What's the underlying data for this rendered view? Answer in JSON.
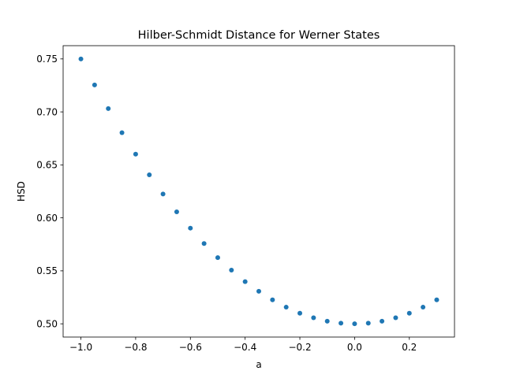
{
  "chart_data": {
    "type": "scatter",
    "title": "Hilber-Schmidt Distance for Werner States",
    "xlabel": "a",
    "ylabel": "HSD",
    "xlim": [
      -1.065,
      0.365
    ],
    "ylim": [
      0.4875,
      0.7625
    ],
    "xticks": [
      -1.0,
      -0.8,
      -0.6,
      -0.4,
      -0.2,
      0.0,
      0.2
    ],
    "xtick_labels": [
      "−1.0",
      "−0.8",
      "−0.6",
      "−0.4",
      "−0.2",
      "0.0",
      "0.2"
    ],
    "yticks": [
      0.5,
      0.55,
      0.6,
      0.65,
      0.7,
      0.75
    ],
    "ytick_labels": [
      "0.50",
      "0.55",
      "0.60",
      "0.65",
      "0.70",
      "0.75"
    ],
    "grid": false,
    "legend": "none",
    "series": [
      {
        "color": "#1f77b4",
        "x": [
          -1.0,
          -0.95,
          -0.9,
          -0.85,
          -0.8,
          -0.75,
          -0.7,
          -0.65,
          -0.6,
          -0.55,
          -0.5,
          -0.45,
          -0.4,
          -0.35,
          -0.3,
          -0.25,
          -0.2,
          -0.15,
          -0.1,
          -0.05,
          0.0,
          0.05,
          0.1,
          0.15,
          0.2,
          0.25,
          0.3
        ],
        "y": [
          0.75,
          0.7254,
          0.7031,
          0.6804,
          0.6601,
          0.6406,
          0.6225,
          0.6057,
          0.5903,
          0.5758,
          0.5625,
          0.5507,
          0.5398,
          0.5307,
          0.5226,
          0.5157,
          0.51,
          0.5057,
          0.5025,
          0.5006,
          0.5,
          0.5006,
          0.5025,
          0.5057,
          0.51,
          0.5157,
          0.5226
        ]
      }
    ]
  }
}
